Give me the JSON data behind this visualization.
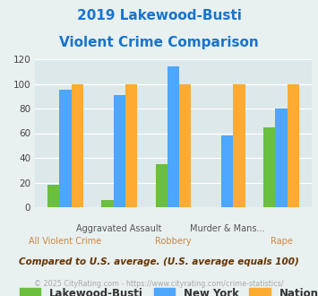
{
  "title_line1": "2019 Lakewood-Busti",
  "title_line2": "Violent Crime Comparison",
  "title_color": "#1874cd",
  "lakewood_values": [
    18,
    6,
    35,
    0,
    65
  ],
  "newyork_values": [
    95,
    91,
    114,
    58,
    80
  ],
  "national_values": [
    100,
    100,
    100,
    100,
    100
  ],
  "lakewood_color": "#6abf3e",
  "newyork_color": "#4da6ff",
  "national_color": "#ffaa33",
  "ylim": [
    0,
    120
  ],
  "yticks": [
    0,
    20,
    40,
    60,
    80,
    100,
    120
  ],
  "bg_color": "#e8f0f0",
  "plot_bg": "#dce8ea",
  "legend_labels": [
    "Lakewood-Busti",
    "New York",
    "National"
  ],
  "legend_text_color": "#333333",
  "footnote1": "Compared to U.S. average. (U.S. average equals 100)",
  "footnote2": "© 2025 CityRating.com - https://www.cityrating.com/crime-statistics/",
  "footnote1_color": "#663300",
  "footnote2_color": "#aaaaaa",
  "top_labels": [
    "",
    "Aggravated Assault",
    "",
    "Murder & Mans...",
    ""
  ],
  "bottom_labels": [
    "All Violent Crime",
    "",
    "Robbery",
    "",
    "Rape"
  ],
  "top_label_color": "#555555",
  "bottom_label_color": "#cc8844"
}
